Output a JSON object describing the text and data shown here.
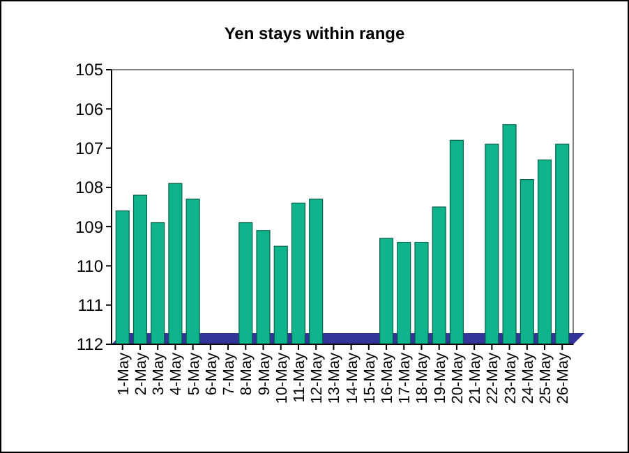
{
  "chart_data": {
    "type": "bar",
    "title": "Yen stays within range",
    "categories": [
      "1-May",
      "2-May",
      "3-May",
      "4-May",
      "5-May",
      "6-May",
      "7-May",
      "8-May",
      "9-May",
      "10-May",
      "11-May",
      "12-May",
      "13-May",
      "14-May",
      "15-May",
      "16-May",
      "17-May",
      "18-May",
      "19-May",
      "20-May",
      "21-May",
      "22-May",
      "23-May",
      "24-May",
      "25-May",
      "26-May"
    ],
    "values": [
      -3.4,
      -3.8,
      -3.1,
      -4.1,
      -3.7,
      null,
      null,
      -3.1,
      -2.9,
      -2.5,
      -3.6,
      -3.7,
      null,
      null,
      null,
      -2.7,
      -2.6,
      -2.6,
      -3.5,
      -5.2,
      null,
      -5.1,
      -5.6,
      -4.2,
      -4.7,
      -5.1
    ],
    "base": [
      112,
      112,
      112,
      112,
      112,
      null,
      null,
      112,
      112,
      112,
      112,
      112,
      null,
      null,
      null,
      112,
      112,
      112,
      112,
      112,
      null,
      112,
      112,
      112,
      112,
      112
    ],
    "color": "#10b48c",
    "ylim": [
      112,
      105
    ],
    "yticks": [
      112,
      111,
      110,
      109,
      108,
      107,
      106,
      105
    ],
    "grid": false
  }
}
